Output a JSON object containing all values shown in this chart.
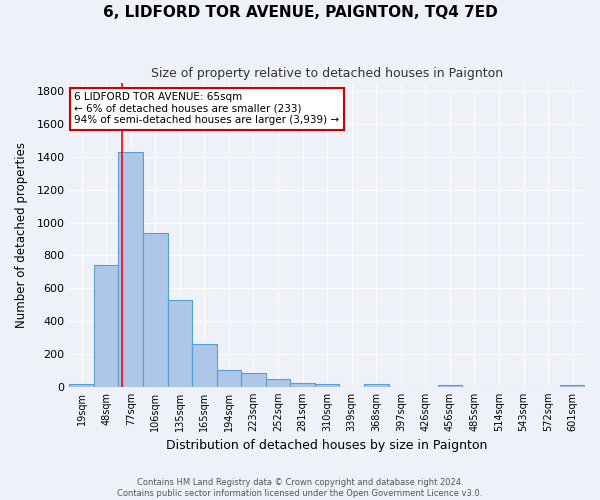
{
  "title": "6, LIDFORD TOR AVENUE, PAIGNTON, TQ4 7ED",
  "subtitle": "Size of property relative to detached houses in Paignton",
  "xlabel": "Distribution of detached houses by size in Paignton",
  "ylabel": "Number of detached properties",
  "footer_line1": "Contains HM Land Registry data © Crown copyright and database right 2024.",
  "footer_line2": "Contains public sector information licensed under the Open Government Licence v3.0.",
  "categories": [
    "19sqm",
    "48sqm",
    "77sqm",
    "106sqm",
    "135sqm",
    "165sqm",
    "194sqm",
    "223sqm",
    "252sqm",
    "281sqm",
    "310sqm",
    "339sqm",
    "368sqm",
    "397sqm",
    "426sqm",
    "456sqm",
    "485sqm",
    "514sqm",
    "543sqm",
    "572sqm",
    "601sqm"
  ],
  "values": [
    20,
    740,
    1430,
    935,
    530,
    260,
    100,
    85,
    45,
    25,
    20,
    0,
    15,
    0,
    0,
    10,
    0,
    0,
    0,
    0,
    10
  ],
  "bar_color": "#aec6e8",
  "bar_edge_color": "#5a9fd4",
  "bg_color": "#eef2f8",
  "grid_color": "#ffffff",
  "red_line_x": 1.65,
  "annotation_line1": "6 LIDFORD TOR AVENUE: 65sqm",
  "annotation_line2": "← 6% of detached houses are smaller (233)",
  "annotation_line3": "94% of semi-detached houses are larger (3,939) →",
  "annotation_box_color": "#ffffff",
  "annotation_box_edge_color": "#cc0000",
  "ylim": [
    0,
    1850
  ],
  "yticks": [
    0,
    200,
    400,
    600,
    800,
    1000,
    1200,
    1400,
    1600,
    1800
  ]
}
